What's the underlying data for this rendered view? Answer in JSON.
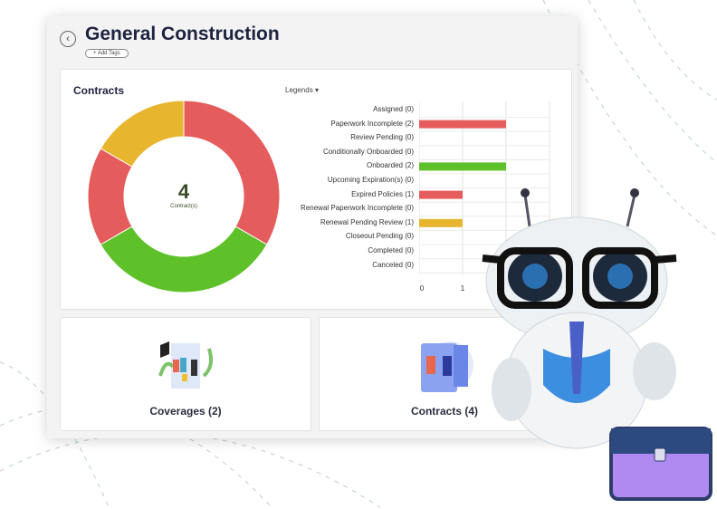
{
  "header": {
    "title": "General Construction",
    "add_tags": "+ Add Tags",
    "back_icon": "chevron-left-icon"
  },
  "contracts_card": {
    "title": "Contracts",
    "legends": "Legends",
    "center_value": "4",
    "center_label": "Contract(s)"
  },
  "chart_data": {
    "type": "bar",
    "orientation": "horizontal",
    "categories": [
      "Assigned (0)",
      "Paperwork Incomplete (2)",
      "Review Pending (0)",
      "Conditionally Onboarded (0)",
      "Onboarded (2)",
      "Upcoming Expiration(s) (0)",
      "Expired Policies (1)",
      "Renewal Paperwork Incomplete (0)",
      "Renewal Pending Review (1)",
      "Closeout Pending (0)",
      "Completed (0)",
      "Canceled (0)"
    ],
    "values": [
      0,
      2,
      0,
      0,
      2,
      0,
      1,
      0,
      1,
      0,
      0,
      0
    ],
    "colors": [
      "#e55c5c",
      "#e55c5c",
      "#e55c5c",
      "#e55c5c",
      "#5fc12a",
      "#e55c5c",
      "#e55c5c",
      "#e55c5c",
      "#e8b52f",
      "#e55c5c",
      "#e55c5c",
      "#e55c5c"
    ],
    "xticks": [
      "0",
      "1"
    ],
    "xlim": [
      0,
      3
    ],
    "donut": [
      {
        "value": 2,
        "color": "#e55c5c"
      },
      {
        "value": 2,
        "color": "#5fc12a"
      },
      {
        "value": 1,
        "color": "#e55c5c"
      },
      {
        "value": 1,
        "color": "#e8b52f"
      }
    ]
  },
  "tiles": [
    {
      "label": "Coverages (2)"
    },
    {
      "label": "Contracts (4)"
    }
  ]
}
